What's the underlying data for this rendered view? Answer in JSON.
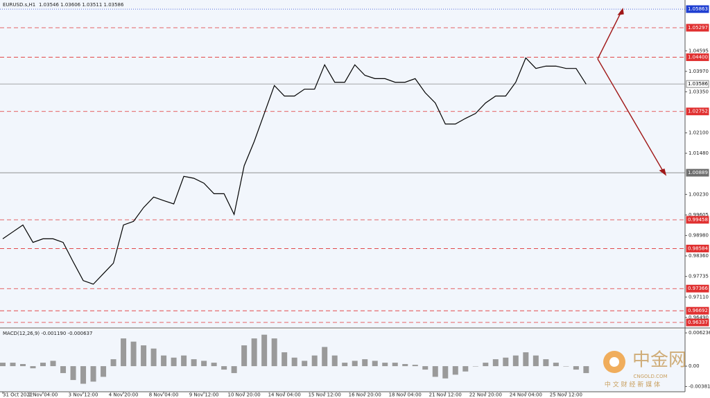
{
  "chart_data": [
    {
      "type": "line",
      "title": "EURUSD.s,H1",
      "subtitle": "1.03546 1.03606 1.03511 1.03586",
      "x": [
        0,
        8,
        16,
        24,
        32,
        40,
        48,
        56,
        64,
        72,
        80,
        88,
        96,
        104,
        112,
        120,
        128,
        136,
        144,
        152,
        160,
        168,
        176,
        184,
        192,
        200,
        208,
        216,
        224,
        232,
        240,
        248,
        256,
        264,
        272,
        280,
        288,
        296,
        304,
        312,
        320,
        328,
        336,
        344,
        352,
        360,
        368,
        376,
        384,
        392,
        400,
        408,
        416,
        424,
        432,
        440,
        448,
        456,
        464
      ],
      "values": [
        0.9888,
        0.9909,
        0.993,
        0.9877,
        0.9888,
        0.9888,
        0.9877,
        0.9818,
        0.9761,
        0.975,
        0.9782,
        0.9814,
        0.993,
        0.9941,
        0.9983,
        1.0015,
        1.0004,
        0.9994,
        1.0078,
        1.0072,
        1.0057,
        1.0025,
        1.0025,
        0.9962,
        1.011,
        1.0184,
        1.0269,
        1.0354,
        1.0322,
        1.0322,
        1.0343,
        1.0343,
        1.0417,
        1.0364,
        1.0364,
        1.0417,
        1.0385,
        1.0375,
        1.0375,
        1.0364,
        1.0364,
        1.0375,
        1.0332,
        1.0301,
        1.0237,
        1.0237,
        1.0254,
        1.0269,
        1.0301,
        1.0322,
        1.0322,
        1.0364,
        1.0438,
        1.0406,
        1.0413,
        1.0413,
        1.0406,
        1.0406,
        1.0358
      ],
      "color": "#000000",
      "xlim": [
        0,
        541
      ],
      "xticks": [
        {
          "value": 0,
          "label": "31 Oct 2022"
        },
        {
          "value": 32,
          "label": "2 Nov 04:00"
        },
        {
          "value": 64,
          "label": "3 Nov 12:00"
        },
        {
          "value": 96,
          "label": "4 Nov 20:00"
        },
        {
          "value": 128,
          "label": "8 Nov 04:00"
        },
        {
          "value": 160,
          "label": "9 Nov 12:00"
        },
        {
          "value": 192,
          "label": "10 Nov 20:00"
        },
        {
          "value": 224,
          "label": "14 Nov 04:00"
        },
        {
          "value": 256,
          "label": "15 Nov 12:00"
        },
        {
          "value": 288,
          "label": "16 Nov 20:00"
        },
        {
          "value": 320,
          "label": "18 Nov 04:00"
        },
        {
          "value": 352,
          "label": "21 Nov 12:00"
        },
        {
          "value": 384,
          "label": "22 Nov 20:00"
        },
        {
          "value": 416,
          "label": "24 Nov 04:00"
        },
        {
          "value": 448,
          "label": "25 Nov 12:00"
        }
      ],
      "ylim": [
        0.9619,
        1.0614
      ],
      "yticks": [
        1.04595,
        {
          "value": 1.0397,
          "label": "1.03970"
        },
        {
          "value": 1.0335,
          "label": "1.03350"
        },
        {
          "value": 1.021,
          "label": "1.02100"
        },
        {
          "value": 1.0148,
          "label": "1.01480"
        },
        {
          "value": 1.0023,
          "label": "1.00230"
        },
        0.99605,
        {
          "value": 0.9898,
          "label": "0.98980"
        },
        {
          "value": 0.9836,
          "label": "0.98360"
        },
        0.97735,
        {
          "value": 0.9711,
          "label": "0.97110"
        },
        {
          "value": 0.9649,
          "label": "0.96490"
        }
      ],
      "levels": [
        {
          "value": 1.05863,
          "color": "#1f3fd1"
        },
        {
          "value": 1.05297,
          "color": "#e03030"
        },
        {
          "value": 1.044,
          "label": "1.04400",
          "color": "#e03030"
        },
        {
          "value": 1.03586,
          "color": "#8a8a8a"
        },
        {
          "value": 1.02752,
          "color": "#e03030"
        },
        {
          "value": 1.00889,
          "color": "#6e6e6e"
        },
        {
          "value": 0.99458,
          "color": "#e03030"
        },
        {
          "value": 0.98584,
          "color": "#e03030"
        },
        {
          "value": 0.97366,
          "color": "#e03030"
        },
        {
          "value": 0.96692,
          "color": "#e03030"
        },
        {
          "value": 0.96337,
          "color": "#e03030"
        }
      ]
    },
    {
      "type": "bar",
      "title": "MACD(12,26,9) -0.001190 -0.000637",
      "x": [
        0,
        8,
        16,
        24,
        32,
        40,
        48,
        56,
        64,
        72,
        80,
        88,
        96,
        104,
        112,
        120,
        128,
        136,
        144,
        152,
        160,
        168,
        176,
        184,
        192,
        200,
        208,
        216,
        224,
        232,
        240,
        248,
        256,
        264,
        272,
        280,
        288,
        296,
        304,
        312,
        320,
        328,
        336,
        344,
        352,
        360,
        368,
        376,
        384,
        392,
        400,
        408,
        416,
        424,
        432,
        440,
        448,
        456,
        464
      ],
      "values": [
        0.00065,
        0.00065,
        0.0004,
        -0.0004,
        0.00065,
        0.001,
        -0.0013,
        -0.0026,
        -0.0033,
        -0.0029,
        -0.002,
        0.0013,
        0.0052,
        0.0046,
        0.0039,
        0.0033,
        0.002,
        0.0016,
        0.002,
        0.0013,
        0.001,
        0.00065,
        -0.00065,
        -0.0013,
        0.0039,
        0.0052,
        0.0059,
        0.0052,
        0.0026,
        0.0016,
        0.001,
        0.002,
        0.0036,
        0.002,
        0.00065,
        0.001,
        0.0013,
        0.001,
        0.00065,
        0.00065,
        0.0004,
        0.00026,
        -0.00065,
        -0.002,
        -0.0023,
        -0.0016,
        -0.001,
        0,
        0.00065,
        0.0013,
        0.0016,
        0.002,
        0.0026,
        0.002,
        0.0013,
        0.00065,
        0,
        -0.00065,
        -0.0013
      ],
      "color": "#9a9a9a",
      "xlim": [
        0,
        541
      ],
      "ylim": [
        -0.0048,
        0.0069
      ],
      "yticks": [
        0.006236,
        {
          "value": 0,
          "label": "0.00"
        },
        -0.003816
      ]
    }
  ],
  "watermark": {
    "name": "中金网",
    "site": "CNGOLD.COM",
    "tagline": "中 文 财 经 新 媒 体"
  }
}
